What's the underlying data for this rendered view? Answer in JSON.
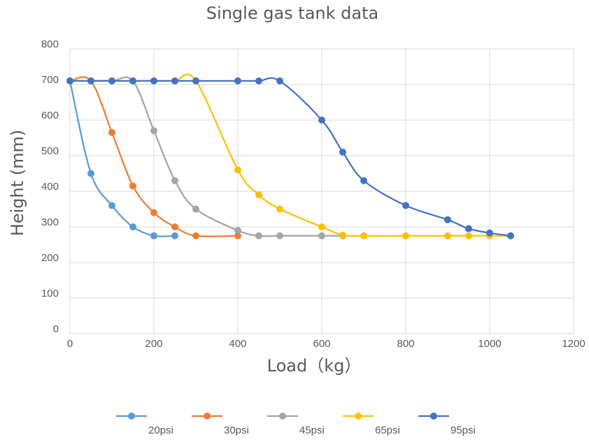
{
  "chart_data": {
    "type": "line",
    "title": "Single gas tank data",
    "xlabel": "Load（kg）",
    "ylabel": "Height (mm)",
    "xlim": [
      0,
      1200
    ],
    "ylim": [
      0,
      800
    ],
    "xticks": [
      0,
      200,
      400,
      600,
      800,
      1000,
      1200
    ],
    "yticks": [
      0,
      100,
      200,
      300,
      400,
      500,
      600,
      700,
      800
    ],
    "xtick_labels": [
      "0",
      "200",
      "400",
      "600",
      "800",
      "1000",
      "1200"
    ],
    "ytick_labels": [
      "0",
      "100",
      "200",
      "300",
      "400",
      "500",
      "600",
      "700",
      "800"
    ],
    "grid": true,
    "legend_position": "bottom",
    "series": [
      {
        "name": "20psi",
        "color": "#5b9bd5",
        "points": [
          [
            0,
            710
          ],
          [
            50,
            450
          ],
          [
            100,
            360
          ],
          [
            150,
            300
          ],
          [
            200,
            275
          ],
          [
            250,
            275
          ]
        ]
      },
      {
        "name": "30psi",
        "color": "#ed7d31",
        "points": [
          [
            0,
            710
          ],
          [
            50,
            710
          ],
          [
            100,
            565
          ],
          [
            150,
            415
          ],
          [
            200,
            340
          ],
          [
            250,
            300
          ],
          [
            300,
            275
          ],
          [
            400,
            275
          ]
        ]
      },
      {
        "name": "45psi",
        "color": "#a5a5a5",
        "points": [
          [
            0,
            710
          ],
          [
            50,
            710
          ],
          [
            100,
            710
          ],
          [
            150,
            710
          ],
          [
            200,
            570
          ],
          [
            250,
            430
          ],
          [
            300,
            350
          ],
          [
            400,
            290
          ],
          [
            450,
            275
          ],
          [
            500,
            275
          ],
          [
            600,
            275
          ],
          [
            650,
            275
          ]
        ]
      },
      {
        "name": "65psi",
        "color": "#ffc000",
        "points": [
          [
            0,
            710
          ],
          [
            50,
            710
          ],
          [
            100,
            710
          ],
          [
            150,
            710
          ],
          [
            200,
            710
          ],
          [
            250,
            710
          ],
          [
            300,
            710
          ],
          [
            400,
            460
          ],
          [
            450,
            390
          ],
          [
            500,
            350
          ],
          [
            600,
            300
          ],
          [
            650,
            277
          ],
          [
            700,
            275
          ],
          [
            800,
            275
          ],
          [
            900,
            275
          ],
          [
            950,
            275
          ],
          [
            1000,
            275
          ],
          [
            1050,
            275
          ]
        ]
      },
      {
        "name": "95psi",
        "color": "#4472c4",
        "points": [
          [
            0,
            710
          ],
          [
            50,
            710
          ],
          [
            100,
            710
          ],
          [
            150,
            710
          ],
          [
            200,
            710
          ],
          [
            250,
            710
          ],
          [
            300,
            710
          ],
          [
            400,
            710
          ],
          [
            450,
            710
          ],
          [
            500,
            710
          ],
          [
            600,
            600
          ],
          [
            650,
            510
          ],
          [
            700,
            430
          ],
          [
            800,
            360
          ],
          [
            900,
            320
          ],
          [
            950,
            295
          ],
          [
            1000,
            283
          ],
          [
            1050,
            275
          ]
        ]
      }
    ]
  }
}
